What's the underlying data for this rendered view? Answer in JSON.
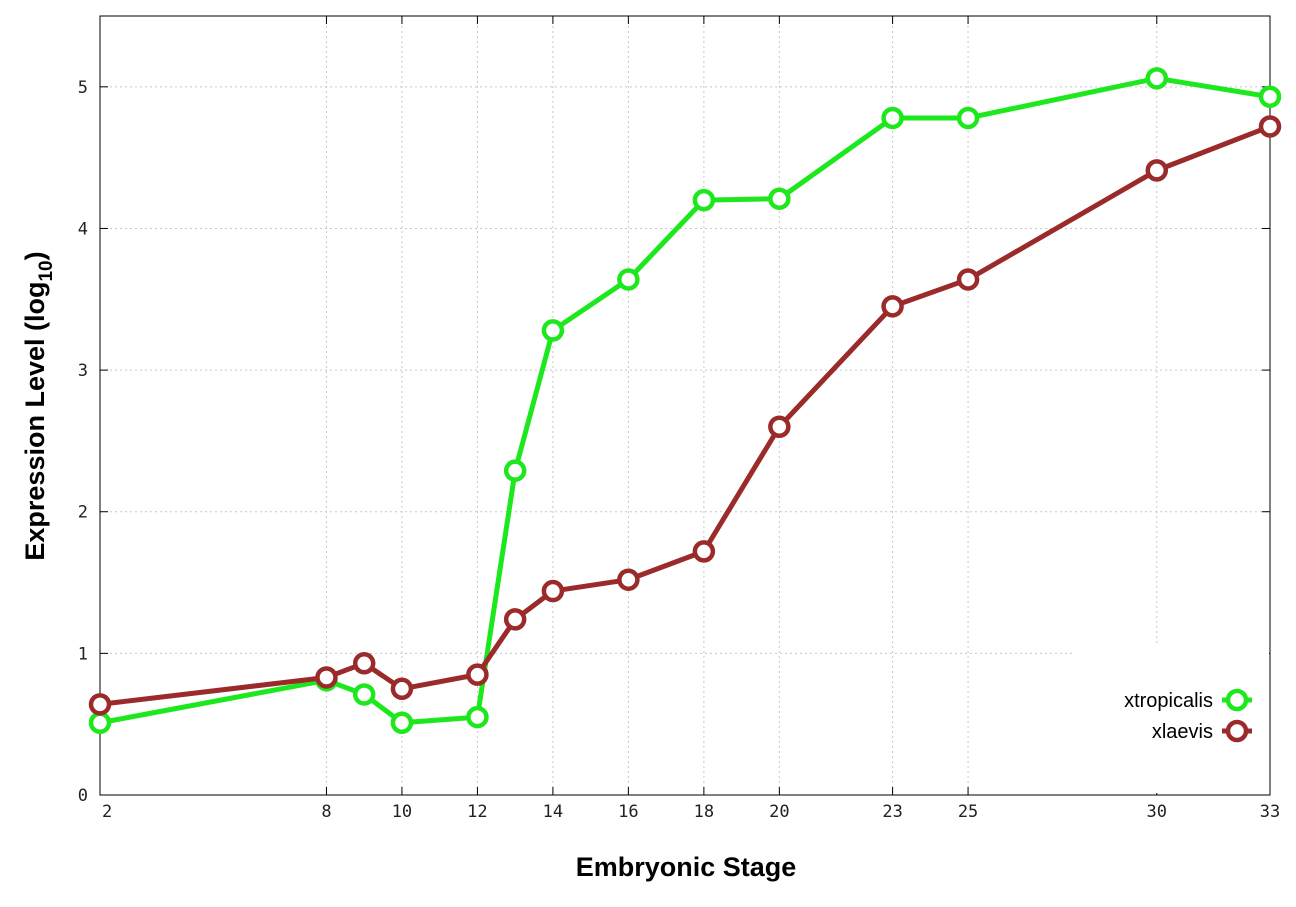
{
  "chart_data": {
    "type": "line",
    "title": "",
    "xlabel": "Embryonic Stage",
    "ylabel_main": "Expression Level (log",
    "ylabel_sub": "10",
    "ylabel_end": ")",
    "x": [
      2,
      8,
      9,
      10,
      12,
      13,
      14,
      16,
      18,
      20,
      23,
      25,
      30,
      33
    ],
    "x_ticks": [
      2,
      8,
      10,
      12,
      14,
      16,
      18,
      20,
      23,
      25,
      30,
      33
    ],
    "y_ticks": [
      0,
      1,
      2,
      3,
      4,
      5
    ],
    "xlim": [
      2,
      33
    ],
    "ylim": [
      0,
      5.5
    ],
    "grid": true,
    "legend_position": "bottom-right",
    "series": [
      {
        "name": "xtropicalis",
        "color": "#1de81d",
        "values": [
          0.51,
          0.81,
          0.71,
          0.51,
          0.55,
          2.29,
          3.28,
          3.64,
          4.2,
          4.21,
          4.78,
          4.78,
          5.06,
          4.93
        ]
      },
      {
        "name": "xlaevis",
        "color": "#9b2a2a",
        "values": [
          0.64,
          0.83,
          0.93,
          0.75,
          0.85,
          1.24,
          1.44,
          1.52,
          1.72,
          2.6,
          3.45,
          3.64,
          4.41,
          4.72
        ]
      }
    ]
  }
}
